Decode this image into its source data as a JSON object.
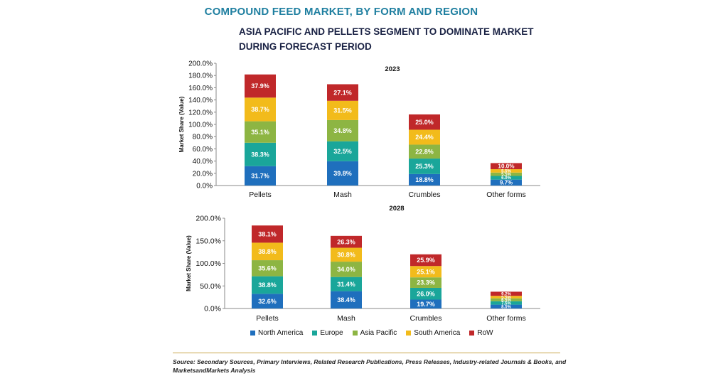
{
  "header": {
    "title": "COMPOUND FEED MARKET, BY FORM AND REGION",
    "subtitle": "ASIA PACIFIC AND PELLETS SEGMENT TO DOMINATE MARKET DURING FORECAST PERIOD"
  },
  "chart_data": [
    {
      "type": "bar",
      "stacked": true,
      "title": "2023",
      "ylabel": "Market Share (Value)",
      "ylim": [
        0,
        200
      ],
      "yticks": [
        "0.0%",
        "20.0%",
        "40.0%",
        "60.0%",
        "80.0%",
        "100.0%",
        "120.0%",
        "140.0%",
        "160.0%",
        "180.0%",
        "200.0%"
      ],
      "categories": [
        "Pellets",
        "Mash",
        "Crumbles",
        "Other forms"
      ],
      "series": [
        {
          "name": "North America",
          "values": [
            31.7,
            39.8,
            18.8,
            9.7
          ],
          "labels": [
            "31.7%",
            "39.8%",
            "18.8%",
            "9.7%"
          ]
        },
        {
          "name": "Europe",
          "values": [
            38.3,
            32.5,
            25.3,
            6.0
          ],
          "labels": [
            "38.3%",
            "32.5%",
            "25.3%",
            "6.0%"
          ]
        },
        {
          "name": "Asia Pacific",
          "values": [
            35.1,
            34.8,
            22.8,
            5.5
          ],
          "labels": [
            "35.1%",
            "34.8%",
            "22.8%",
            "5.5%"
          ]
        },
        {
          "name": "South America",
          "values": [
            38.7,
            31.5,
            24.4,
            5.5
          ],
          "labels": [
            "38.7%",
            "31.5%",
            "24.4%",
            "5.5%"
          ]
        },
        {
          "name": "RoW",
          "values": [
            37.9,
            27.1,
            25.0,
            10.0
          ],
          "labels": [
            "37.9%",
            "27.1%",
            "25.0%",
            "10.0%"
          ]
        }
      ]
    },
    {
      "type": "bar",
      "stacked": true,
      "title": "2028",
      "ylabel": "Market Share (Value)",
      "ylim": [
        0,
        200
      ],
      "yticks": [
        "0.0%",
        "50.0%",
        "100.0%",
        "150.0%",
        "200.0%"
      ],
      "categories": [
        "Pellets",
        "Mash",
        "Crumbles",
        "Other forms"
      ],
      "series": [
        {
          "name": "North America",
          "values": [
            32.6,
            38.4,
            19.7,
            8.5
          ],
          "labels": [
            "32.6%",
            "38.4%",
            "19.7%",
            "8.5%"
          ]
        },
        {
          "name": "Europe",
          "values": [
            38.8,
            31.4,
            26.0,
            7.5
          ],
          "labels": [
            "38.8%",
            "31.4%",
            "26.0%",
            "7.5%"
          ]
        },
        {
          "name": "Asia Pacific",
          "values": [
            35.6,
            34.0,
            23.3,
            6.5
          ],
          "labels": [
            "35.6%",
            "34.0%",
            "23.3%",
            "6.5%"
          ]
        },
        {
          "name": "South America",
          "values": [
            38.8,
            30.8,
            25.1,
            5.5
          ],
          "labels": [
            "38.8%",
            "30.8%",
            "25.1%",
            "5.5%"
          ]
        },
        {
          "name": "RoW",
          "values": [
            38.1,
            26.3,
            25.9,
            9.2
          ],
          "labels": [
            "38.1%",
            "26.3%",
            "25.9%",
            "9.2%"
          ]
        }
      ]
    }
  ],
  "legend": [
    {
      "name": "North America",
      "color": "#1f6fbd"
    },
    {
      "name": "Europe",
      "color": "#1aa69a"
    },
    {
      "name": "Asia Pacific",
      "color": "#8db543"
    },
    {
      "name": "South America",
      "color": "#f2bb1b"
    },
    {
      "name": "RoW",
      "color": "#c0282a"
    }
  ],
  "source": "Source: Secondary Sources, Primary Interviews, Related Research Publications, Press Releases, Industry-related Journals & Books, and MarketsandMarkets Analysis"
}
